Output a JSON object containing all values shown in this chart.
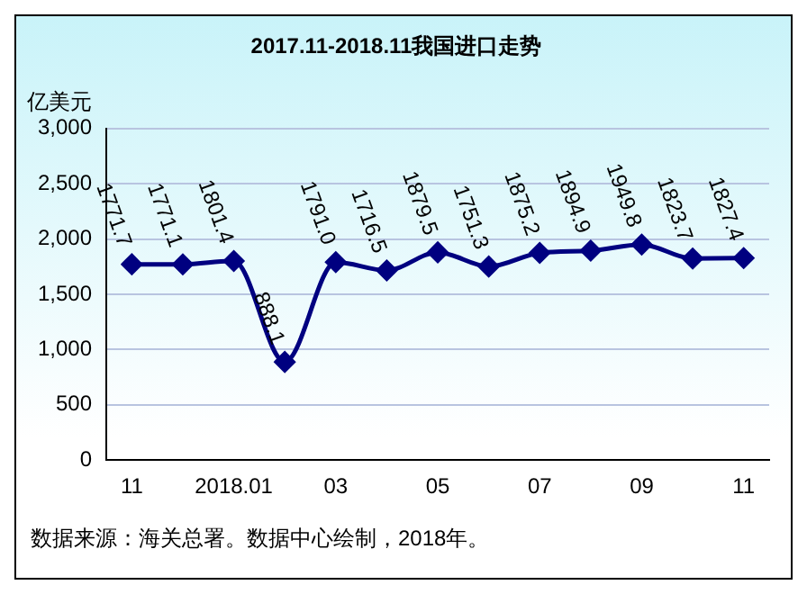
{
  "chart_data": {
    "type": "line",
    "title": "2017.11-2018.11我国进口走势",
    "ylabel": "亿美元",
    "categories": [
      "11",
      null,
      "2018.01",
      null,
      "03",
      null,
      "05",
      null,
      "07",
      null,
      "09",
      null,
      "11"
    ],
    "series": [
      {
        "color": "#000080",
        "values": [
          1771.7,
          1771.1,
          1801.4,
          888.1,
          1791.0,
          1716.5,
          1879.5,
          1751.3,
          1875.2,
          1894.9,
          1949.8,
          1823.7,
          1827.4
        ]
      }
    ],
    "value_labels": [
      "1771.7",
      "1771.1",
      "1801.4",
      "888.1",
      "1791.0",
      "1716.5",
      "1879.5",
      "1751.3",
      "1875.2",
      "1894.9",
      "1949.8",
      "1823.7",
      "1827.4"
    ],
    "ylim": [
      0,
      3000
    ],
    "yticks": [
      {
        "value": 0,
        "label": "0"
      },
      {
        "value": 500,
        "label": "500"
      },
      {
        "value": 1000,
        "label": "1,000"
      },
      {
        "value": 1500,
        "label": "1,500"
      },
      {
        "value": 2000,
        "label": "2,000"
      },
      {
        "value": 2500,
        "label": "2,500"
      },
      {
        "value": 3000,
        "label": "3,000"
      }
    ],
    "grid": "y",
    "legend": false,
    "marker": "diamond",
    "line_style": "solid",
    "annotations": [
      "数据来源：海关总署。数据中心绘制，2018年。"
    ]
  }
}
